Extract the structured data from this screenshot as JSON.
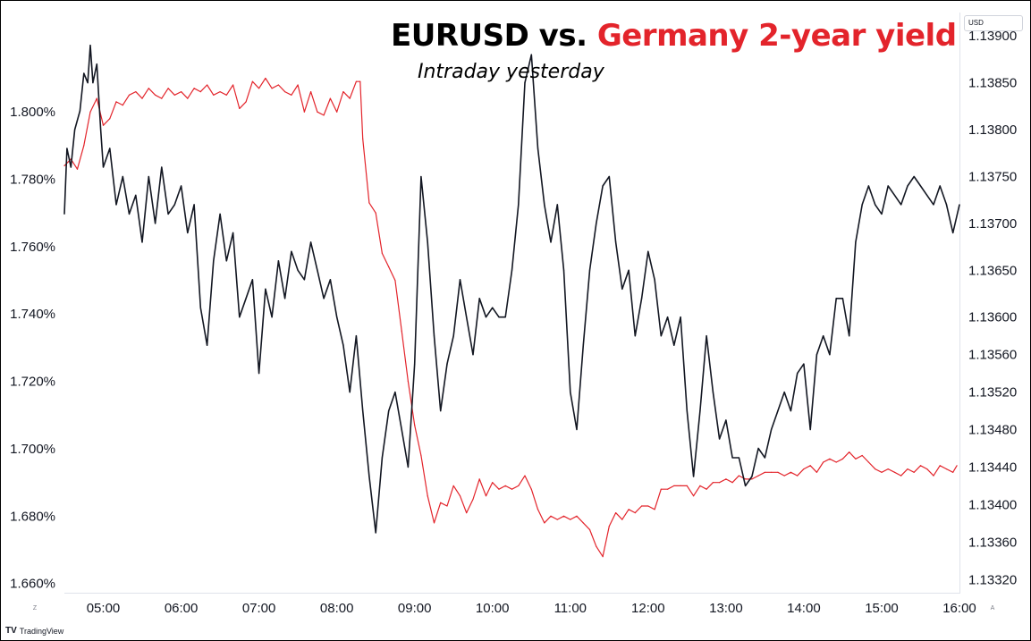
{
  "chart_data": {
    "type": "line",
    "title_part1": "EURUSD vs. ",
    "title_part2": "Germany 2-year yield",
    "subtitle": "Intraday yesterday",
    "currency_badge": "USD",
    "x_start": "04:30",
    "x_end": "16:00",
    "xticks": [
      "05:00",
      "06:00",
      "07:00",
      "08:00",
      "09:00",
      "10:00",
      "11:00",
      "12:00",
      "13:00",
      "14:00",
      "15:00",
      "16:00"
    ],
    "left_axis": {
      "ticks": [
        "1.800%",
        "1.780%",
        "1.760%",
        "1.740%",
        "1.720%",
        "1.700%",
        "1.680%",
        "1.660%"
      ],
      "range": [
        1.657,
        1.8295
      ]
    },
    "right_axis": {
      "ticks": [
        "1.13900",
        "1.13850",
        "1.13800",
        "1.13750",
        "1.13700",
        "1.13650",
        "1.13600",
        "1.13560",
        "1.13520",
        "1.13480",
        "1.13440",
        "1.13400",
        "1.13360",
        "1.13320"
      ],
      "range": [
        1.13305,
        1.13925
      ]
    },
    "series": [
      {
        "name": "EURUSD",
        "axis": "right",
        "color": "#131722",
        "points": [
          [
            "04:30",
            1.1371
          ],
          [
            "04:32",
            1.1378
          ],
          [
            "04:35",
            1.1376
          ],
          [
            "04:38",
            1.138
          ],
          [
            "04:42",
            1.1382
          ],
          [
            "04:45",
            1.1386
          ],
          [
            "04:48",
            1.1385
          ],
          [
            "04:50",
            1.1389
          ],
          [
            "04:52",
            1.1385
          ],
          [
            "04:55",
            1.1387
          ],
          [
            "04:58",
            1.138
          ],
          [
            "05:00",
            1.1376
          ],
          [
            "05:05",
            1.1378
          ],
          [
            "05:10",
            1.1372
          ],
          [
            "05:15",
            1.1375
          ],
          [
            "05:20",
            1.1371
          ],
          [
            "05:25",
            1.1373
          ],
          [
            "05:30",
            1.1368
          ],
          [
            "05:35",
            1.1375
          ],
          [
            "05:40",
            1.137
          ],
          [
            "05:45",
            1.1376
          ],
          [
            "05:50",
            1.1371
          ],
          [
            "05:55",
            1.1372
          ],
          [
            "06:00",
            1.1374
          ],
          [
            "06:05",
            1.1369
          ],
          [
            "06:10",
            1.1372
          ],
          [
            "06:15",
            1.1361
          ],
          [
            "06:20",
            1.1357
          ],
          [
            "06:25",
            1.1366
          ],
          [
            "06:30",
            1.1371
          ],
          [
            "06:35",
            1.1366
          ],
          [
            "06:40",
            1.1369
          ],
          [
            "06:45",
            1.136
          ],
          [
            "06:50",
            1.1362
          ],
          [
            "06:55",
            1.1364
          ],
          [
            "07:00",
            1.1354
          ],
          [
            "07:05",
            1.1363
          ],
          [
            "07:10",
            1.136
          ],
          [
            "07:15",
            1.1366
          ],
          [
            "07:20",
            1.1362
          ],
          [
            "07:25",
            1.1367
          ],
          [
            "07:30",
            1.1365
          ],
          [
            "07:35",
            1.1364
          ],
          [
            "07:40",
            1.1368
          ],
          [
            "07:45",
            1.1365
          ],
          [
            "07:50",
            1.1362
          ],
          [
            "07:55",
            1.1364
          ],
          [
            "08:00",
            1.136
          ],
          [
            "08:05",
            1.1357
          ],
          [
            "08:10",
            1.1352
          ],
          [
            "08:15",
            1.1358
          ],
          [
            "08:20",
            1.135
          ],
          [
            "08:25",
            1.1343
          ],
          [
            "08:30",
            1.1337
          ],
          [
            "08:35",
            1.1345
          ],
          [
            "08:40",
            1.135
          ],
          [
            "08:45",
            1.1352
          ],
          [
            "08:50",
            1.1348
          ],
          [
            "08:55",
            1.1344
          ],
          [
            "09:00",
            1.1355
          ],
          [
            "09:05",
            1.1375
          ],
          [
            "09:10",
            1.1368
          ],
          [
            "09:15",
            1.1358
          ],
          [
            "09:20",
            1.135
          ],
          [
            "09:25",
            1.1355
          ],
          [
            "09:30",
            1.1358
          ],
          [
            "09:35",
            1.1364
          ],
          [
            "09:40",
            1.136
          ],
          [
            "09:45",
            1.1356
          ],
          [
            "09:50",
            1.1362
          ],
          [
            "09:55",
            1.136
          ],
          [
            "10:00",
            1.1361
          ],
          [
            "10:05",
            1.136
          ],
          [
            "10:10",
            1.136
          ],
          [
            "10:15",
            1.1365
          ],
          [
            "10:20",
            1.1372
          ],
          [
            "10:25",
            1.1385
          ],
          [
            "10:30",
            1.1388
          ],
          [
            "10:35",
            1.1378
          ],
          [
            "10:40",
            1.1372
          ],
          [
            "10:45",
            1.1368
          ],
          [
            "10:50",
            1.1372
          ],
          [
            "10:55",
            1.1365
          ],
          [
            "11:00",
            1.1352
          ],
          [
            "11:05",
            1.1348
          ],
          [
            "11:10",
            1.1357
          ],
          [
            "11:15",
            1.1365
          ],
          [
            "11:20",
            1.137
          ],
          [
            "11:25",
            1.1374
          ],
          [
            "11:30",
            1.1375
          ],
          [
            "11:35",
            1.1368
          ],
          [
            "11:40",
            1.1363
          ],
          [
            "11:45",
            1.1365
          ],
          [
            "11:50",
            1.1358
          ],
          [
            "11:55",
            1.1362
          ],
          [
            "12:00",
            1.1367
          ],
          [
            "12:05",
            1.1364
          ],
          [
            "12:10",
            1.1358
          ],
          [
            "12:15",
            1.136
          ],
          [
            "12:20",
            1.1357
          ],
          [
            "12:25",
            1.136
          ],
          [
            "12:30",
            1.135
          ],
          [
            "12:35",
            1.1343
          ],
          [
            "12:40",
            1.135
          ],
          [
            "12:45",
            1.1358
          ],
          [
            "12:50",
            1.1352
          ],
          [
            "12:55",
            1.1347
          ],
          [
            "13:00",
            1.1349
          ],
          [
            "13:05",
            1.1345
          ],
          [
            "13:10",
            1.1345
          ],
          [
            "13:15",
            1.1342
          ],
          [
            "13:20",
            1.1343
          ],
          [
            "13:25",
            1.1346
          ],
          [
            "13:30",
            1.1345
          ],
          [
            "13:35",
            1.1348
          ],
          [
            "13:40",
            1.135
          ],
          [
            "13:45",
            1.1352
          ],
          [
            "13:50",
            1.135
          ],
          [
            "13:55",
            1.1354
          ],
          [
            "14:00",
            1.1355
          ],
          [
            "14:05",
            1.1348
          ],
          [
            "14:10",
            1.1356
          ],
          [
            "14:15",
            1.1358
          ],
          [
            "14:20",
            1.1356
          ],
          [
            "14:25",
            1.1362
          ],
          [
            "14:30",
            1.1362
          ],
          [
            "14:35",
            1.1358
          ],
          [
            "14:40",
            1.1368
          ],
          [
            "14:45",
            1.1372
          ],
          [
            "14:50",
            1.1374
          ],
          [
            "14:55",
            1.1372
          ],
          [
            "15:00",
            1.1371
          ],
          [
            "15:05",
            1.1374
          ],
          [
            "15:10",
            1.1373
          ],
          [
            "15:15",
            1.1372
          ],
          [
            "15:20",
            1.1374
          ],
          [
            "15:25",
            1.1375
          ],
          [
            "15:30",
            1.1374
          ],
          [
            "15:35",
            1.1373
          ],
          [
            "15:40",
            1.1372
          ],
          [
            "15:45",
            1.1374
          ],
          [
            "15:50",
            1.1372
          ],
          [
            "15:55",
            1.1369
          ],
          [
            "16:00",
            1.1372
          ]
        ]
      },
      {
        "name": "Germany 2-year yield",
        "axis": "left",
        "color": "#e3242b",
        "points": [
          [
            "04:30",
            1.784
          ],
          [
            "04:35",
            1.786
          ],
          [
            "04:40",
            1.783
          ],
          [
            "04:45",
            1.79
          ],
          [
            "04:50",
            1.8
          ],
          [
            "04:55",
            1.804
          ],
          [
            "05:00",
            1.796
          ],
          [
            "05:05",
            1.798
          ],
          [
            "05:10",
            1.803
          ],
          [
            "05:15",
            1.802
          ],
          [
            "05:20",
            1.805
          ],
          [
            "05:25",
            1.806
          ],
          [
            "05:30",
            1.804
          ],
          [
            "05:35",
            1.807
          ],
          [
            "05:40",
            1.805
          ],
          [
            "05:45",
            1.804
          ],
          [
            "05:50",
            1.807
          ],
          [
            "05:55",
            1.805
          ],
          [
            "06:00",
            1.806
          ],
          [
            "06:05",
            1.804
          ],
          [
            "06:10",
            1.807
          ],
          [
            "06:15",
            1.806
          ],
          [
            "06:20",
            1.808
          ],
          [
            "06:25",
            1.805
          ],
          [
            "06:30",
            1.806
          ],
          [
            "06:35",
            1.805
          ],
          [
            "06:40",
            1.808
          ],
          [
            "06:45",
            1.801
          ],
          [
            "06:50",
            1.803
          ],
          [
            "06:55",
            1.809
          ],
          [
            "07:00",
            1.807
          ],
          [
            "07:05",
            1.81
          ],
          [
            "07:10",
            1.807
          ],
          [
            "07:15",
            1.808
          ],
          [
            "07:20",
            1.806
          ],
          [
            "07:25",
            1.805
          ],
          [
            "07:30",
            1.808
          ],
          [
            "07:35",
            1.8
          ],
          [
            "07:40",
            1.806
          ],
          [
            "07:45",
            1.8
          ],
          [
            "07:50",
            1.799
          ],
          [
            "07:55",
            1.804
          ],
          [
            "08:00",
            1.8
          ],
          [
            "08:05",
            1.806
          ],
          [
            "08:10",
            1.804
          ],
          [
            "08:15",
            1.809
          ],
          [
            "08:18",
            1.809
          ],
          [
            "08:20",
            1.792
          ],
          [
            "08:25",
            1.773
          ],
          [
            "08:30",
            1.77
          ],
          [
            "08:35",
            1.758
          ],
          [
            "08:40",
            1.754
          ],
          [
            "08:45",
            1.75
          ],
          [
            "08:50",
            1.735
          ],
          [
            "08:55",
            1.72
          ],
          [
            "09:00",
            1.707
          ],
          [
            "09:05",
            1.698
          ],
          [
            "09:10",
            1.686
          ],
          [
            "09:15",
            1.678
          ],
          [
            "09:20",
            1.684
          ],
          [
            "09:25",
            1.683
          ],
          [
            "09:30",
            1.689
          ],
          [
            "09:35",
            1.686
          ],
          [
            "09:40",
            1.681
          ],
          [
            "09:45",
            1.685
          ],
          [
            "09:50",
            1.691
          ],
          [
            "09:55",
            1.686
          ],
          [
            "10:00",
            1.69
          ],
          [
            "10:05",
            1.688
          ],
          [
            "10:10",
            1.689
          ],
          [
            "10:15",
            1.688
          ],
          [
            "10:20",
            1.689
          ],
          [
            "10:25",
            1.692
          ],
          [
            "10:30",
            1.688
          ],
          [
            "10:35",
            1.682
          ],
          [
            "10:40",
            1.678
          ],
          [
            "10:45",
            1.68
          ],
          [
            "10:50",
            1.679
          ],
          [
            "10:55",
            1.68
          ],
          [
            "11:00",
            1.679
          ],
          [
            "11:05",
            1.68
          ],
          [
            "11:10",
            1.678
          ],
          [
            "11:15",
            1.676
          ],
          [
            "11:20",
            1.671
          ],
          [
            "11:25",
            1.668
          ],
          [
            "11:30",
            1.677
          ],
          [
            "11:35",
            1.681
          ],
          [
            "11:40",
            1.679
          ],
          [
            "11:45",
            1.682
          ],
          [
            "11:50",
            1.681
          ],
          [
            "11:55",
            1.683
          ],
          [
            "12:00",
            1.683
          ],
          [
            "12:05",
            1.682
          ],
          [
            "12:10",
            1.688
          ],
          [
            "12:15",
            1.688
          ],
          [
            "12:20",
            1.689
          ],
          [
            "12:25",
            1.689
          ],
          [
            "12:30",
            1.689
          ],
          [
            "12:35",
            1.686
          ],
          [
            "12:40",
            1.689
          ],
          [
            "12:45",
            1.688
          ],
          [
            "12:50",
            1.69
          ],
          [
            "12:55",
            1.69
          ],
          [
            "13:00",
            1.691
          ],
          [
            "13:05",
            1.69
          ],
          [
            "13:10",
            1.692
          ],
          [
            "13:15",
            1.691
          ],
          [
            "13:20",
            1.691
          ],
          [
            "13:25",
            1.692
          ],
          [
            "13:30",
            1.693
          ],
          [
            "13:35",
            1.693
          ],
          [
            "13:40",
            1.693
          ],
          [
            "13:45",
            1.692
          ],
          [
            "13:50",
            1.693
          ],
          [
            "13:55",
            1.692
          ],
          [
            "14:00",
            1.694
          ],
          [
            "14:05",
            1.695
          ],
          [
            "14:10",
            1.693
          ],
          [
            "14:15",
            1.696
          ],
          [
            "14:20",
            1.697
          ],
          [
            "14:25",
            1.696
          ],
          [
            "14:30",
            1.697
          ],
          [
            "14:35",
            1.699
          ],
          [
            "14:40",
            1.697
          ],
          [
            "14:45",
            1.698
          ],
          [
            "14:50",
            1.696
          ],
          [
            "14:55",
            1.694
          ],
          [
            "15:00",
            1.693
          ],
          [
            "15:05",
            1.694
          ],
          [
            "15:10",
            1.693
          ],
          [
            "15:15",
            1.692
          ],
          [
            "15:20",
            1.694
          ],
          [
            "15:25",
            1.693
          ],
          [
            "15:30",
            1.695
          ],
          [
            "15:35",
            1.694
          ],
          [
            "15:40",
            1.692
          ],
          [
            "15:45",
            1.695
          ],
          [
            "15:50",
            1.694
          ],
          [
            "15:55",
            1.693
          ],
          [
            "15:58",
            1.695
          ]
        ]
      }
    ],
    "grid": false,
    "legend": "none"
  },
  "corner_left_label": "Z",
  "corner_right_label": "A",
  "brand": {
    "mark": "TV",
    "name": "TradingView"
  },
  "colors": {
    "red": "#e3242b",
    "ink": "#131722"
  }
}
